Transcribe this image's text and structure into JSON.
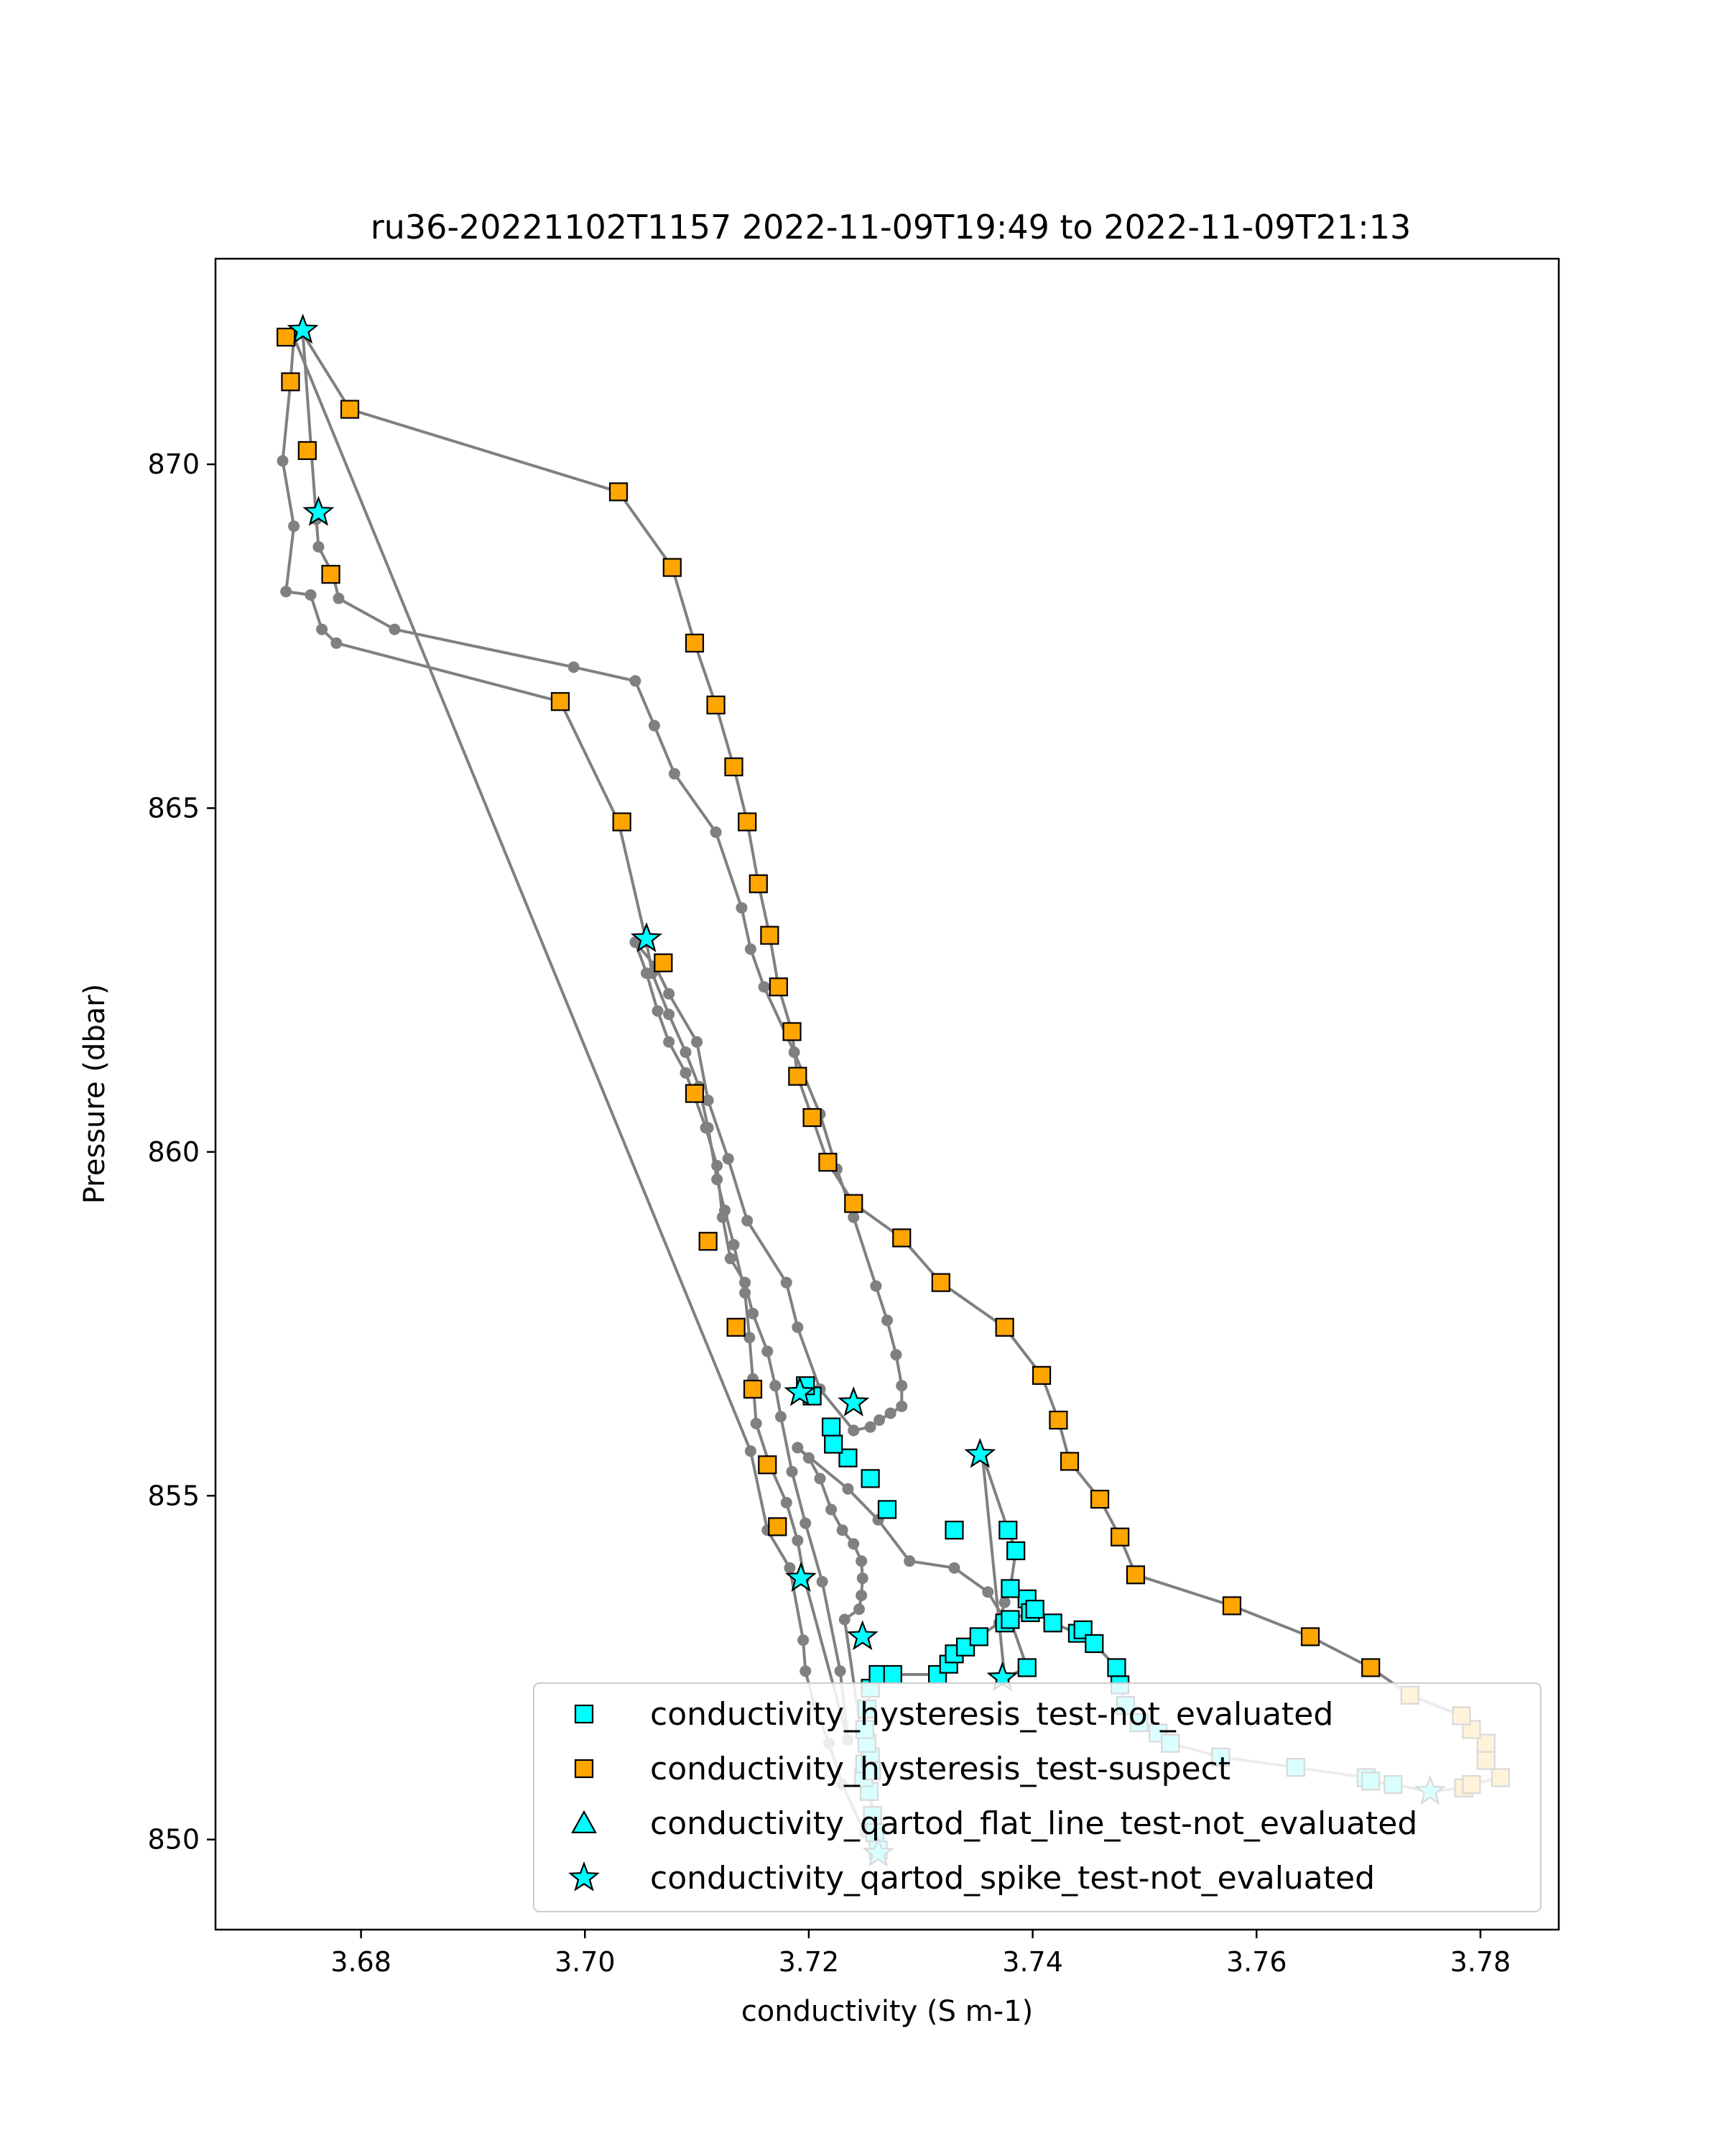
{
  "chart_data": {
    "type": "scatter",
    "title": "ru36-20221102T1157 2022-11-09T19:49 to 2022-11-09T21:13",
    "xlabel": "conductivity (S m-1)",
    "ylabel": "Pressure (dbar)",
    "xlim": [
      3.667,
      3.787
    ],
    "ylim": [
      872.99,
      848.69
    ],
    "y_inverted": true,
    "xticks": [
      3.68,
      3.7,
      3.72,
      3.74,
      3.76,
      3.78
    ],
    "xtick_labels": [
      "3.68",
      "3.70",
      "3.72",
      "3.74",
      "3.76",
      "3.78"
    ],
    "yticks": [
      850,
      855,
      860,
      865,
      870
    ],
    "ytick_labels": [
      "850",
      "855",
      "860",
      "865",
      "870"
    ],
    "grid": false,
    "legend_position": "lower-right",
    "colors": {
      "line": "#808080",
      "not_evaluated": "#00ffff",
      "suspect": "#ffa500",
      "marker_edge": "#000000"
    },
    "legend": [
      {
        "label": "conductivity_hysteresis_test-not_evaluated",
        "marker": "square",
        "color": "#00ffff"
      },
      {
        "label": "conductivity_hysteresis_test-suspect",
        "marker": "square",
        "color": "#ffa500"
      },
      {
        "label": "conductivity_qartod_flat_line_test-not_evaluated",
        "marker": "triangle",
        "color": "#00ffff"
      },
      {
        "label": "conductivity_qartod_spike_test-not_evaluated",
        "marker": "star",
        "color": "#00ffff"
      }
    ],
    "profile_line": [
      [
        3.7262,
        849.85
      ],
      [
        3.7259,
        850.1
      ],
      [
        3.7257,
        850.35
      ],
      [
        3.7254,
        850.7
      ],
      [
        3.7249,
        850.9
      ],
      [
        3.725,
        851.1
      ],
      [
        3.7255,
        851.2
      ],
      [
        3.7252,
        851.4
      ],
      [
        3.725,
        851.6
      ],
      [
        3.7252,
        851.9
      ],
      [
        3.7255,
        852.2
      ],
      [
        3.7262,
        852.4
      ],
      [
        3.7275,
        852.4
      ],
      [
        3.7315,
        852.4
      ],
      [
        3.7325,
        852.55
      ],
      [
        3.733,
        852.7
      ],
      [
        3.734,
        852.8
      ],
      [
        3.7352,
        852.95
      ],
      [
        3.737,
        853.15
      ],
      [
        3.7375,
        853.45
      ],
      [
        3.738,
        853.65
      ],
      [
        3.7385,
        854.2
      ],
      [
        3.7378,
        854.5
      ],
      [
        3.7355,
        855.6
      ],
      [
        3.7375,
        852.35
      ],
      [
        3.7395,
        852.5
      ],
      [
        3.738,
        853.2
      ],
      [
        3.7398,
        853.3
      ],
      [
        3.7395,
        853.5
      ],
      [
        3.7402,
        853.35
      ],
      [
        3.7418,
        853.15
      ],
      [
        3.744,
        853.0
      ],
      [
        3.7445,
        853.05
      ],
      [
        3.7455,
        852.85
      ],
      [
        3.7475,
        852.5
      ],
      [
        3.7478,
        852.25
      ],
      [
        3.7483,
        851.95
      ],
      [
        3.7495,
        851.7
      ],
      [
        3.7512,
        851.55
      ],
      [
        3.7523,
        851.4
      ],
      [
        3.7568,
        851.2
      ],
      [
        3.7635,
        851.05
      ],
      [
        3.7698,
        850.9
      ],
      [
        3.7702,
        850.85
      ],
      [
        3.7722,
        850.8
      ],
      [
        3.7755,
        850.7
      ],
      [
        3.7785,
        850.75
      ],
      [
        3.7792,
        850.8
      ],
      [
        3.7818,
        850.9
      ],
      [
        3.7805,
        851.15
      ],
      [
        3.7805,
        851.4
      ],
      [
        3.7792,
        851.6
      ],
      [
        3.7783,
        851.8
      ],
      [
        3.7737,
        852.1
      ],
      [
        3.7702,
        852.5
      ],
      [
        3.7648,
        852.95
      ],
      [
        3.7578,
        853.4
      ],
      [
        3.7492,
        853.85
      ],
      [
        3.7478,
        854.4
      ],
      [
        3.746,
        854.95
      ],
      [
        3.7433,
        855.5
      ],
      [
        3.7423,
        856.1
      ],
      [
        3.7408,
        856.75
      ],
      [
        3.7375,
        857.45
      ],
      [
        3.7318,
        858.1
      ],
      [
        3.7283,
        858.75
      ],
      [
        3.724,
        859.25
      ],
      [
        3.7217,
        859.85
      ],
      [
        3.7203,
        860.5
      ],
      [
        3.719,
        861.1
      ],
      [
        3.7185,
        861.75
      ],
      [
        3.7173,
        862.4
      ],
      [
        3.7165,
        863.15
      ],
      [
        3.7155,
        863.9
      ],
      [
        3.7145,
        864.8
      ],
      [
        3.7133,
        865.6
      ],
      [
        3.7117,
        866.5
      ],
      [
        3.7098,
        867.4
      ],
      [
        3.7078,
        868.5
      ],
      [
        3.703,
        869.6
      ],
      [
        3.679,
        870.8
      ],
      [
        3.6748,
        871.9
      ],
      [
        3.676,
        869.2
      ],
      [
        3.6762,
        868.8
      ],
      [
        3.6775,
        868.4
      ],
      [
        3.678,
        868.05
      ],
      [
        3.683,
        867.6
      ],
      [
        3.699,
        867.05
      ],
      [
        3.7045,
        866.85
      ],
      [
        3.7062,
        866.2
      ],
      [
        3.708,
        865.5
      ],
      [
        3.7117,
        864.65
      ],
      [
        3.714,
        863.55
      ],
      [
        3.7148,
        862.95
      ],
      [
        3.716,
        862.4
      ],
      [
        3.7187,
        861.45
      ],
      [
        3.721,
        860.55
      ],
      [
        3.7225,
        859.75
      ],
      [
        3.724,
        859.05
      ],
      [
        3.726,
        858.05
      ],
      [
        3.727,
        857.55
      ],
      [
        3.7278,
        857.05
      ],
      [
        3.7283,
        856.6
      ],
      [
        3.7283,
        856.3
      ],
      [
        3.7273,
        856.2
      ],
      [
        3.7263,
        856.1
      ],
      [
        3.7255,
        856.0
      ],
      [
        3.724,
        855.95
      ],
      [
        3.724,
        855.95
      ],
      [
        3.721,
        856.55
      ],
      [
        3.719,
        857.45
      ],
      [
        3.718,
        858.1
      ],
      [
        3.7145,
        859.0
      ],
      [
        3.7128,
        859.9
      ],
      [
        3.711,
        860.75
      ],
      [
        3.71,
        861.6
      ],
      [
        3.7075,
        862.3
      ],
      [
        3.7063,
        862.7
      ],
      [
        3.7045,
        863.05
      ],
      [
        3.7055,
        862.6
      ],
      [
        3.7065,
        862.05
      ],
      [
        3.7075,
        861.6
      ],
      [
        3.709,
        861.15
      ],
      [
        3.7098,
        860.8
      ],
      [
        3.7108,
        860.35
      ],
      [
        3.7118,
        859.8
      ],
      [
        3.7123,
        859.05
      ],
      [
        3.713,
        858.45
      ],
      [
        3.7143,
        858.1
      ],
      [
        3.715,
        857.65
      ],
      [
        3.7163,
        857.1
      ],
      [
        3.717,
        856.6
      ],
      [
        3.7175,
        856.15
      ],
      [
        3.7185,
        855.35
      ],
      [
        3.7197,
        854.6
      ],
      [
        3.7212,
        853.75
      ],
      [
        3.7228,
        852.45
      ],
      [
        3.7235,
        851.45
      ],
      [
        3.7235,
        851.45
      ],
      [
        3.7196,
        853.8
      ],
      [
        3.719,
        854.35
      ],
      [
        3.718,
        854.9
      ],
      [
        3.7165,
        855.45
      ],
      [
        3.7153,
        856.05
      ],
      [
        3.715,
        856.7
      ],
      [
        3.7147,
        857.3
      ],
      [
        3.7143,
        857.95
      ],
      [
        3.7133,
        858.65
      ],
      [
        3.7125,
        859.15
      ],
      [
        3.7118,
        859.6
      ],
      [
        3.711,
        860.35
      ],
      [
        3.7102,
        860.95
      ],
      [
        3.709,
        861.45
      ],
      [
        3.7075,
        862.0
      ],
      [
        3.706,
        862.6
      ],
      [
        3.7055,
        863.05
      ],
      [
        3.703,
        864.8
      ],
      [
        3.6978,
        866.55
      ],
      [
        3.6778,
        867.4
      ],
      [
        3.6765,
        867.6
      ],
      [
        3.6755,
        868.1
      ],
      [
        3.6733,
        868.15
      ],
      [
        3.674,
        869.1
      ],
      [
        3.673,
        870.05
      ],
      [
        3.6737,
        871.2
      ],
      [
        3.674,
        871.85
      ],
      [
        3.7148,
        855.65
      ],
      [
        3.7163,
        854.5
      ],
      [
        3.7183,
        853.95
      ],
      [
        3.7195,
        852.9
      ],
      [
        3.7197,
        852.45
      ],
      [
        3.7205,
        851.95
      ],
      [
        3.7218,
        851.4
      ],
      [
        3.723,
        850.8
      ],
      [
        3.725,
        850.1
      ],
      [
        3.7262,
        849.85
      ],
      [
        3.7232,
        853.2
      ],
      [
        3.7245,
        853.35
      ],
      [
        3.7247,
        853.55
      ],
      [
        3.7248,
        853.8
      ],
      [
        3.7247,
        854.05
      ],
      [
        3.724,
        854.3
      ],
      [
        3.723,
        854.5
      ],
      [
        3.722,
        854.8
      ],
      [
        3.721,
        855.25
      ],
      [
        3.72,
        855.55
      ],
      [
        3.719,
        855.7
      ],
      [
        3.7235,
        855.1
      ],
      [
        3.7262,
        854.65
      ],
      [
        3.729,
        854.05
      ],
      [
        3.733,
        853.95
      ],
      [
        3.736,
        853.6
      ],
      [
        3.7375,
        853.2
      ]
    ],
    "series": [
      {
        "name": "conductivity_hysteresis_test-not_evaluated",
        "marker": "square",
        "points": [
          [
            3.7262,
            849.85
          ],
          [
            3.7259,
            850.1
          ],
          [
            3.7257,
            850.35
          ],
          [
            3.7254,
            850.7
          ],
          [
            3.7249,
            850.9
          ],
          [
            3.725,
            851.1
          ],
          [
            3.7255,
            851.2
          ],
          [
            3.7256,
            851.0
          ],
          [
            3.7252,
            851.4
          ],
          [
            3.725,
            851.6
          ],
          [
            3.7252,
            851.9
          ],
          [
            3.7255,
            852.2
          ],
          [
            3.7262,
            852.4
          ],
          [
            3.7275,
            852.4
          ],
          [
            3.7315,
            852.4
          ],
          [
            3.7325,
            852.55
          ],
          [
            3.733,
            852.7
          ],
          [
            3.734,
            852.8
          ],
          [
            3.7352,
            852.95
          ],
          [
            3.7375,
            853.15
          ],
          [
            3.738,
            853.2
          ],
          [
            3.7395,
            852.5
          ],
          [
            3.7395,
            853.5
          ],
          [
            3.7398,
            853.3
          ],
          [
            3.7402,
            853.35
          ],
          [
            3.7418,
            853.15
          ],
          [
            3.744,
            853.0
          ],
          [
            3.7445,
            853.05
          ],
          [
            3.7455,
            852.85
          ],
          [
            3.7475,
            852.5
          ],
          [
            3.7478,
            852.25
          ],
          [
            3.7483,
            851.95
          ],
          [
            3.7495,
            851.7
          ],
          [
            3.7512,
            851.55
          ],
          [
            3.7523,
            851.4
          ],
          [
            3.7568,
            851.2
          ],
          [
            3.7635,
            851.05
          ],
          [
            3.7698,
            850.9
          ],
          [
            3.7702,
            850.85
          ],
          [
            3.7722,
            850.8
          ],
          [
            3.738,
            853.65
          ],
          [
            3.7385,
            854.2
          ],
          [
            3.7378,
            854.5
          ],
          [
            3.733,
            854.5
          ],
          [
            3.727,
            854.8
          ],
          [
            3.7255,
            855.25
          ],
          [
            3.7235,
            855.55
          ],
          [
            3.7222,
            855.75
          ],
          [
            3.722,
            856.0
          ],
          [
            3.7203,
            856.45
          ],
          [
            3.7197,
            856.6
          ]
        ]
      },
      {
        "name": "conductivity_hysteresis_test-suspect",
        "marker": "square",
        "points": [
          [
            3.7785,
            850.75
          ],
          [
            3.7792,
            850.8
          ],
          [
            3.7818,
            850.9
          ],
          [
            3.7805,
            851.15
          ],
          [
            3.7805,
            851.4
          ],
          [
            3.7792,
            851.6
          ],
          [
            3.7783,
            851.8
          ],
          [
            3.7737,
            852.1
          ],
          [
            3.7702,
            852.5
          ],
          [
            3.7648,
            852.95
          ],
          [
            3.7578,
            853.4
          ],
          [
            3.7492,
            853.85
          ],
          [
            3.7478,
            854.4
          ],
          [
            3.746,
            854.95
          ],
          [
            3.7433,
            855.5
          ],
          [
            3.7423,
            856.1
          ],
          [
            3.7408,
            856.75
          ],
          [
            3.7375,
            857.45
          ],
          [
            3.7318,
            858.1
          ],
          [
            3.7283,
            858.75
          ],
          [
            3.724,
            859.25
          ],
          [
            3.7217,
            859.85
          ],
          [
            3.7203,
            860.5
          ],
          [
            3.719,
            861.1
          ],
          [
            3.7185,
            861.75
          ],
          [
            3.7173,
            862.4
          ],
          [
            3.7165,
            863.15
          ],
          [
            3.7155,
            863.9
          ],
          [
            3.7145,
            864.8
          ],
          [
            3.7133,
            865.6
          ],
          [
            3.7117,
            866.5
          ],
          [
            3.7098,
            867.4
          ],
          [
            3.7078,
            868.5
          ],
          [
            3.703,
            869.6
          ],
          [
            3.679,
            870.8
          ],
          [
            3.7172,
            854.55
          ],
          [
            3.7163,
            855.45
          ],
          [
            3.715,
            856.55
          ],
          [
            3.7135,
            857.45
          ],
          [
            3.711,
            858.7
          ],
          [
            3.7098,
            860.85
          ],
          [
            3.707,
            862.75
          ],
          [
            3.7033,
            864.8
          ],
          [
            3.6978,
            866.55
          ],
          [
            3.6773,
            868.4
          ],
          [
            3.6752,
            870.2
          ],
          [
            3.6737,
            871.2
          ],
          [
            3.6733,
            871.85
          ]
        ]
      },
      {
        "name": "conductivity_qartod_flat_line_test-not_evaluated",
        "marker": "triangle",
        "points": []
      },
      {
        "name": "conductivity_qartod_spike_test-not_evaluated",
        "marker": "star",
        "points": [
          [
            3.7262,
            849.8
          ],
          [
            3.7755,
            850.7
          ],
          [
            3.7373,
            852.35
          ],
          [
            3.7248,
            852.95
          ],
          [
            3.7193,
            853.8
          ],
          [
            3.7353,
            855.6
          ],
          [
            3.7192,
            856.5
          ],
          [
            3.724,
            856.35
          ],
          [
            3.7055,
            863.1
          ],
          [
            3.6762,
            869.3
          ],
          [
            3.6748,
            871.95
          ]
        ]
      }
    ]
  }
}
